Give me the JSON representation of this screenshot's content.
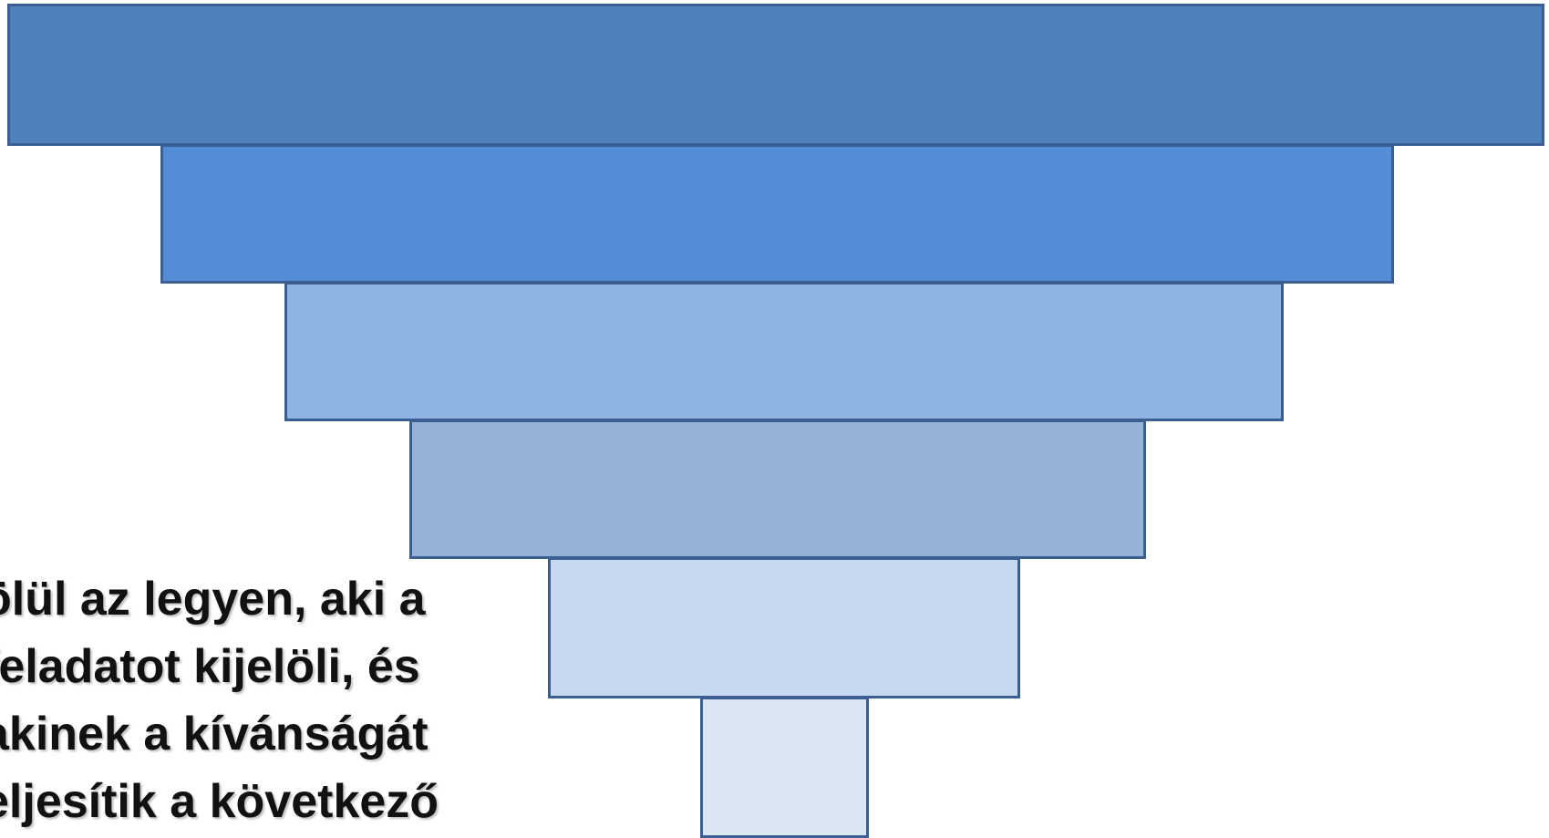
{
  "diagram": {
    "levels": [
      {
        "fill": "#4f81bd"
      },
      {
        "fill": "#538dd5"
      },
      {
        "fill": "#8eb4e3"
      },
      {
        "fill": "#95b3d7"
      },
      {
        "fill": "#c6d9f1"
      },
      {
        "fill": "#dce6f2"
      }
    ],
    "text_lines": [
      "ölül az legyen, aki a",
      "feladatot kijelöli, és",
      "akinek a kívánságát",
      "eljesítik a következő"
    ]
  }
}
